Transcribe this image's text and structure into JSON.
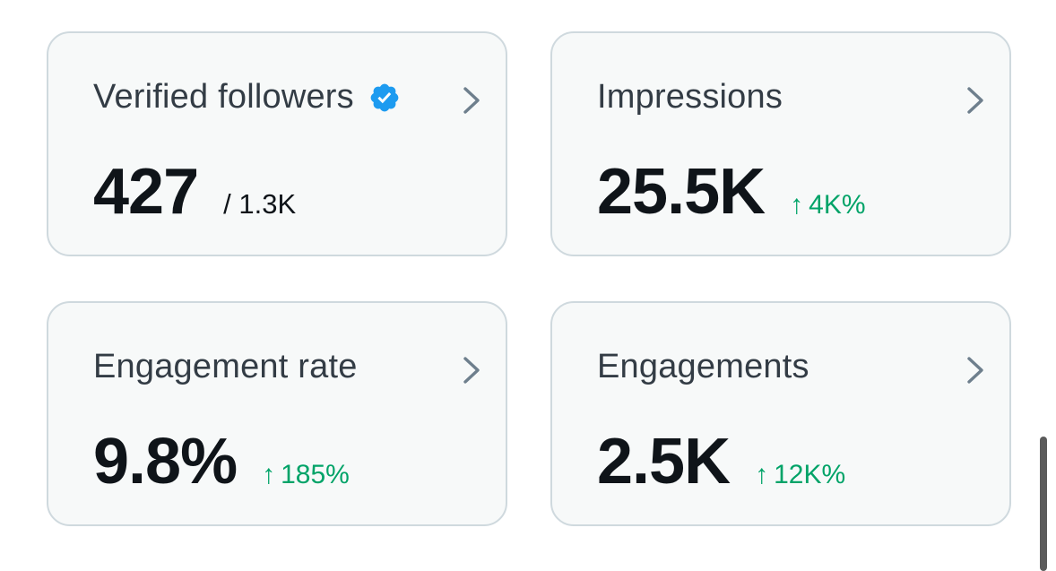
{
  "cards": [
    {
      "title": "Verified followers",
      "value": "427",
      "subvalue": "/ 1.3K",
      "verified_icon": "verified-badge-icon"
    },
    {
      "title": "Impressions",
      "value": "25.5K",
      "delta": "4K%",
      "delta_arrow": "↑"
    },
    {
      "title": "Engagement rate",
      "value": "9.8%",
      "delta": "185%",
      "delta_arrow": "↑"
    },
    {
      "title": "Engagements",
      "value": "2.5K",
      "delta": "12K%",
      "delta_arrow": "↑"
    }
  ],
  "colors": {
    "card_bg": "#f7f9f9",
    "card_border": "#cfd9de",
    "title": "#333c45",
    "value": "#0f1419",
    "positive": "#00a368",
    "verified": "#1d9bf0",
    "chevron": "#6e7f8d"
  }
}
